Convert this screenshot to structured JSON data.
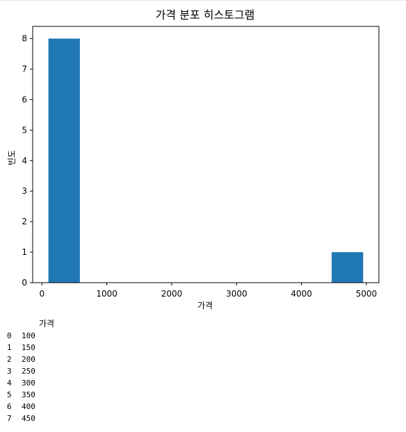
{
  "chart_data": {
    "type": "bar",
    "title": "가격 분포 히스토그램",
    "xlabel": "가격",
    "ylabel": "빈도",
    "bins": [
      {
        "start": 100,
        "end": 585,
        "count": 8
      },
      {
        "start": 585,
        "end": 1070,
        "count": 0
      },
      {
        "start": 1070,
        "end": 1555,
        "count": 0
      },
      {
        "start": 1555,
        "end": 2040,
        "count": 0
      },
      {
        "start": 2040,
        "end": 2525,
        "count": 0
      },
      {
        "start": 2525,
        "end": 3010,
        "count": 0
      },
      {
        "start": 3010,
        "end": 3495,
        "count": 0
      },
      {
        "start": 3495,
        "end": 3980,
        "count": 0
      },
      {
        "start": 3980,
        "end": 4465,
        "count": 0
      },
      {
        "start": 4465,
        "end": 4950,
        "count": 1
      }
    ],
    "xlim": [
      -142.5,
      5192.5
    ],
    "ylim": [
      0,
      8.4
    ],
    "xticks": [
      0,
      1000,
      2000,
      3000,
      4000,
      5000
    ],
    "yticks": [
      0,
      1,
      2,
      3,
      4,
      5,
      6,
      7,
      8
    ],
    "bar_color": "#1f77b4",
    "grid": false
  },
  "table": {
    "column": "가격",
    "rows": [
      {
        "index": "0",
        "value": "100"
      },
      {
        "index": "1",
        "value": "150"
      },
      {
        "index": "2",
        "value": "200"
      },
      {
        "index": "3",
        "value": "250"
      },
      {
        "index": "4",
        "value": "300"
      },
      {
        "index": "5",
        "value": "350"
      },
      {
        "index": "6",
        "value": "400"
      },
      {
        "index": "7",
        "value": "450"
      }
    ]
  }
}
